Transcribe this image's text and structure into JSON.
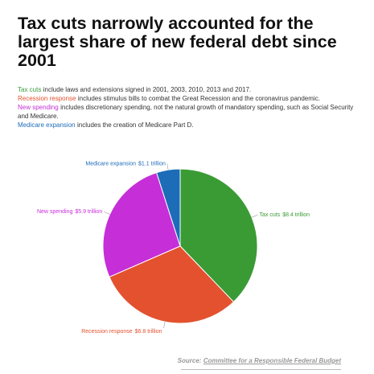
{
  "chart_data": {
    "type": "pie",
    "title": "Tax cuts narrowly accounted for the largest share of new federal debt since 2001",
    "categories": [
      "Tax cuts",
      "Recession response",
      "New spending",
      "Medicare expansion"
    ],
    "values": [
      8.4,
      6.8,
      5.9,
      1.1
    ],
    "value_labels": [
      "$8.4 trillion",
      "$6.8 trillion",
      "$5.9 trillion",
      "$1.1 trillion"
    ],
    "colors": [
      "#3a9b35",
      "#e3512f",
      "#c62ed8",
      "#1c6cb8"
    ],
    "notes": [
      "include laws and extensions signed in 2001, 2003, 2010, 2013 and 2017.",
      "includes stimulus bills to combat the Great Recession and the coronavirus pandemic.",
      "includes discretionary spending, not the natural growth of mandatory spending, such as Social Security and Medicare.",
      "includes the creation of Medicare Part D."
    ],
    "source": {
      "label": "Source:",
      "link": "Committee for a Responsible Federal Budget"
    }
  }
}
